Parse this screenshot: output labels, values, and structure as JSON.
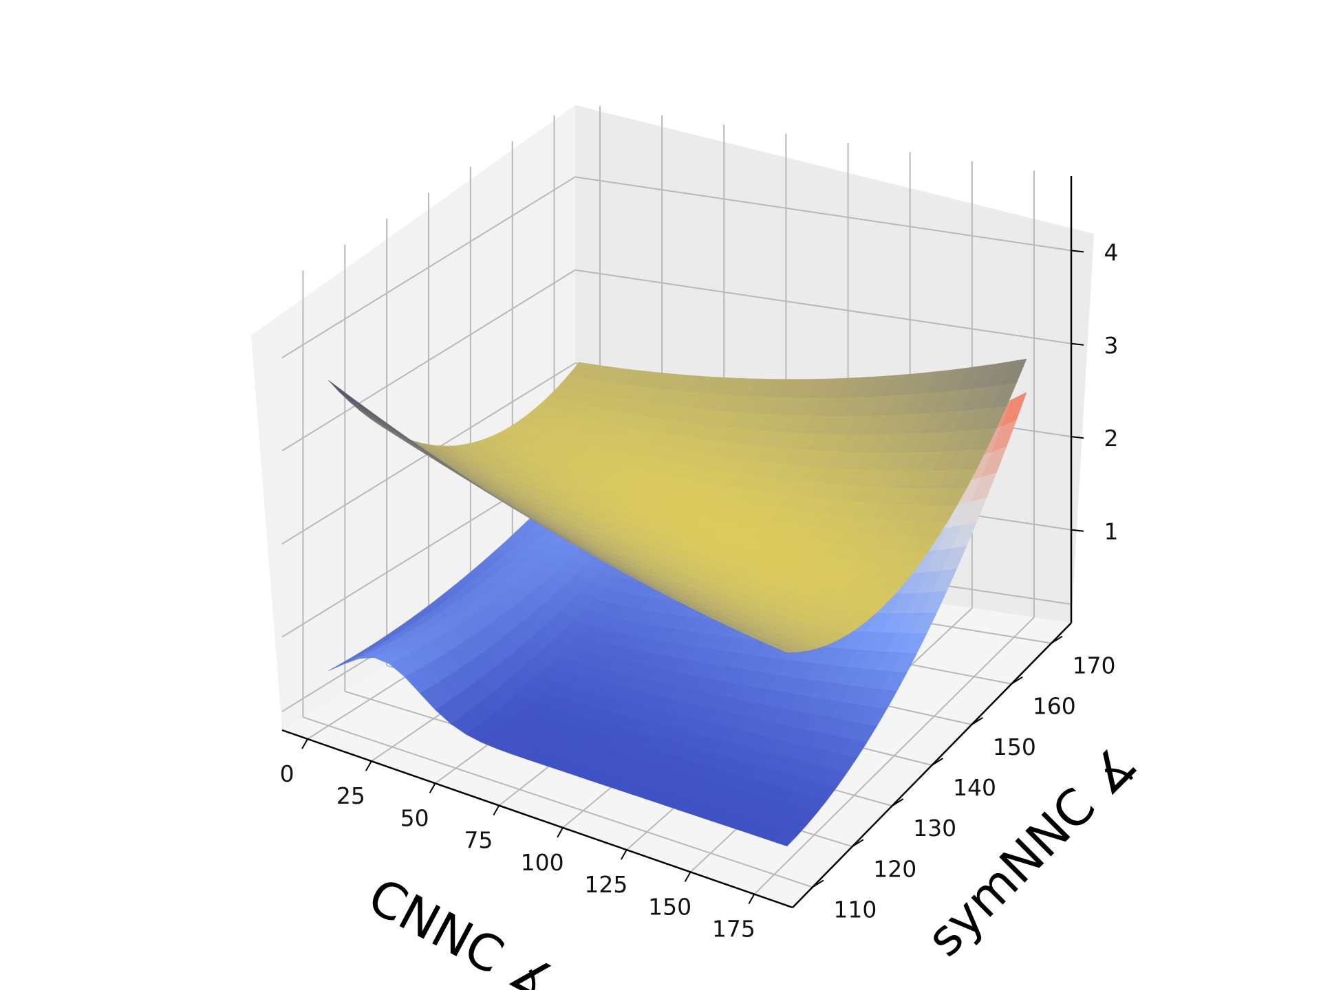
{
  "chart_data": {
    "type": "surface3d",
    "title": "",
    "xlabel": "CNNC ∡",
    "ylabel": "symNNC ∡",
    "zlabel": "",
    "xlim": [
      -10,
      190
    ],
    "ylim": [
      105,
      175
    ],
    "zlim": [
      0,
      4.8
    ],
    "x_ticks": [
      0,
      25,
      50,
      75,
      100,
      125,
      150,
      175
    ],
    "y_ticks": [
      110,
      120,
      130,
      140,
      150,
      160,
      170
    ],
    "z_ticks": [
      1,
      2,
      3,
      4
    ],
    "grid": true,
    "surfaces": [
      {
        "colormap": "coolwarm",
        "description_points": [
          {
            "x": 0,
            "y": 110,
            "z": 0.45
          },
          {
            "x": 30,
            "y": 110,
            "z": 0.9
          },
          {
            "x": 90,
            "y": 110,
            "z": 0.35
          },
          {
            "x": 180,
            "y": 110,
            "z": 0.3
          },
          {
            "x": 0,
            "y": 170,
            "z": 1.5
          },
          {
            "x": 90,
            "y": 170,
            "z": 1.5
          },
          {
            "x": 180,
            "y": 170,
            "z": 3.3
          }
        ]
      },
      {
        "colormap": "cividis",
        "description_points": [
          {
            "x": 0,
            "y": 110,
            "z": 4.0
          },
          {
            "x": 180,
            "y": 110,
            "z": 2.3
          },
          {
            "x": 0,
            "y": 170,
            "z": 3.6
          },
          {
            "x": 90,
            "y": 140,
            "z": 1.3
          },
          {
            "x": 180,
            "y": 170,
            "z": 3.8
          }
        ]
      }
    ]
  }
}
